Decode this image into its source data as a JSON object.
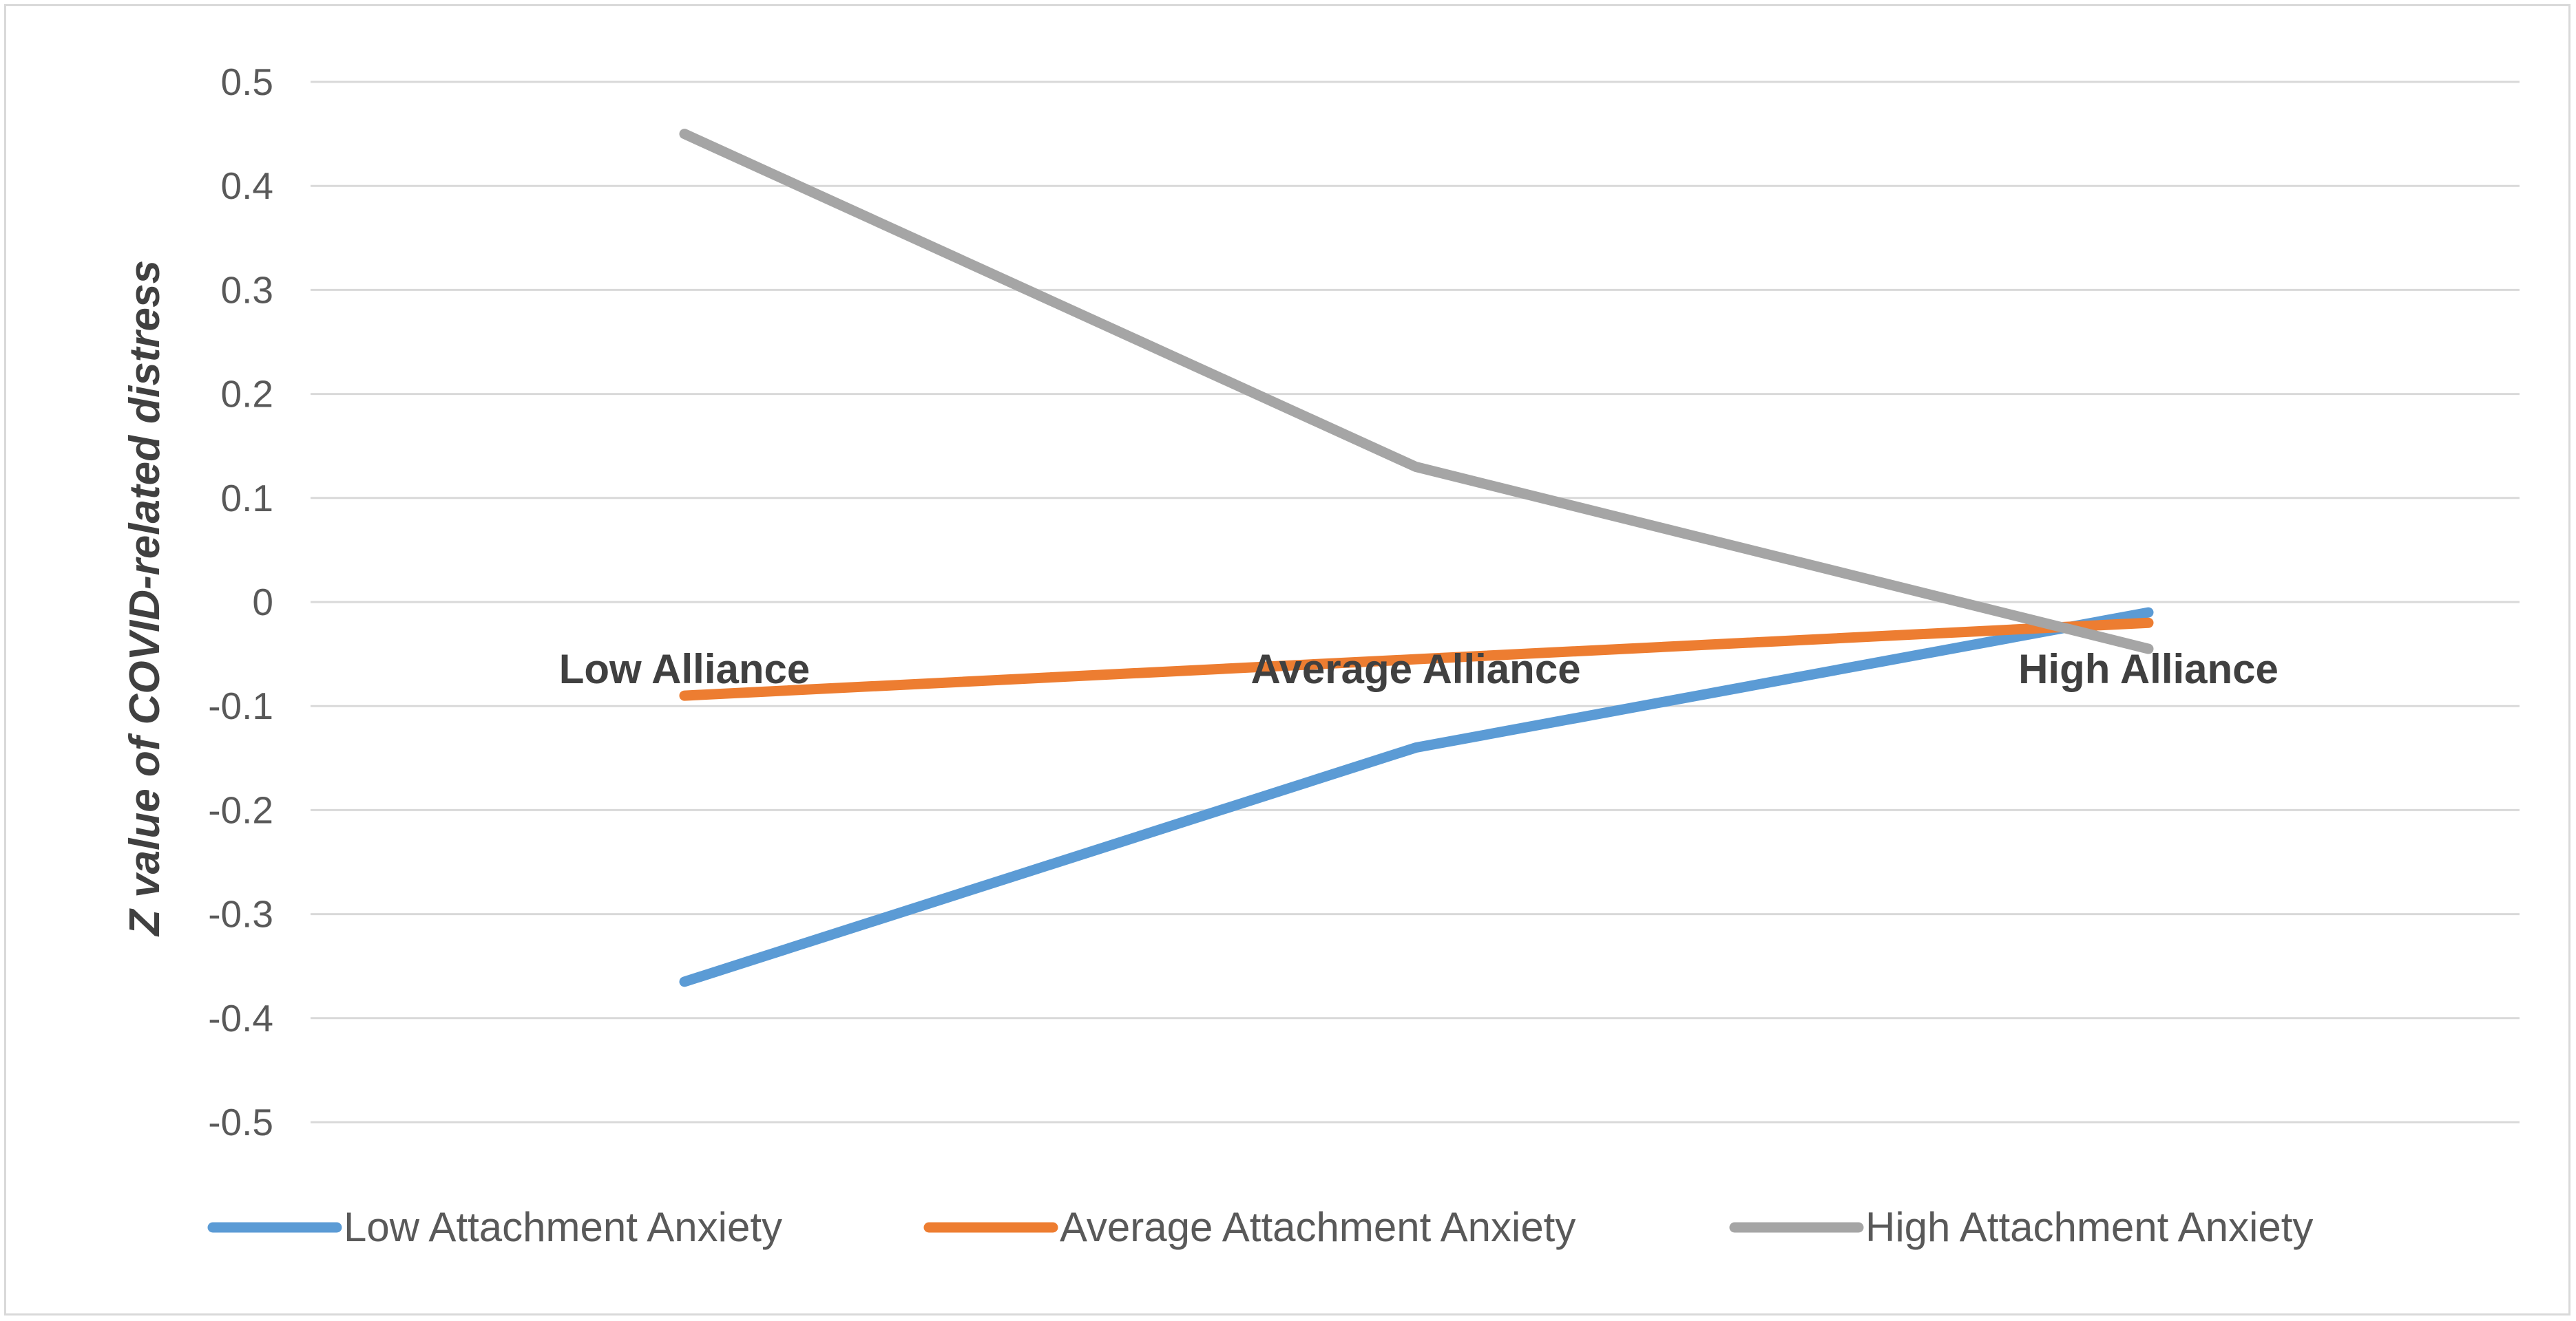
{
  "chart_data": {
    "type": "line",
    "categories": [
      "Low Alliance",
      "Average Alliance",
      "High Alliance"
    ],
    "ylabel": "Z value of COVID-related distress",
    "ylim": [
      -0.5,
      0.5
    ],
    "yticks": [
      "0.5",
      "0.4",
      "0.3",
      "0.2",
      "0.1",
      "0",
      "-0.1",
      "-0.2",
      "-0.3",
      "-0.4",
      "-0.5"
    ],
    "ytick_values": [
      0.5,
      0.4,
      0.3,
      0.2,
      0.1,
      0,
      -0.1,
      -0.2,
      -0.3,
      -0.4,
      -0.5
    ],
    "grid": true,
    "legend_position": "bottom",
    "series": [
      {
        "name": "Low Attachment Anxiety",
        "color": "#5b9bd5",
        "values": [
          -0.365,
          -0.14,
          -0.01
        ]
      },
      {
        "name": "Average Attachment Anxiety",
        "color": "#ed7d31",
        "values": [
          -0.09,
          -0.055,
          -0.02
        ]
      },
      {
        "name": "High Attachment Anxiety",
        "color": "#a5a5a5",
        "values": [
          0.45,
          0.13,
          -0.045
        ]
      }
    ]
  }
}
